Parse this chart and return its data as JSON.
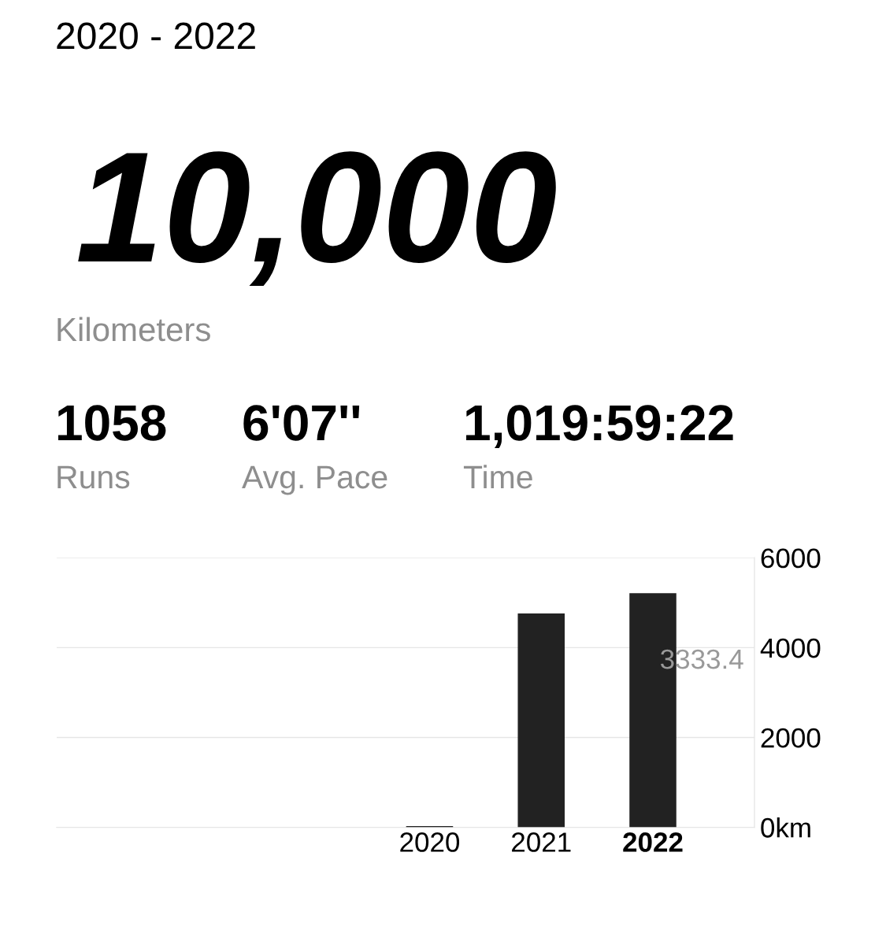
{
  "chart_data": [
    {
      "type": "other",
      "title": "2020 - 2022",
      "annotations": [
        "10,000",
        "Kilometers",
        "1058",
        "Runs",
        "6'07''",
        "Avg. Pace",
        "1,019:59:22",
        "Time"
      ]
    },
    {
      "type": "bar",
      "categories": [
        "2020",
        "2021",
        "2022"
      ],
      "values": [
        30,
        4760,
        5210
      ],
      "color": "#222222",
      "ylim": [
        0,
        6000
      ],
      "yticks": [
        {
          "value": 0,
          "label": "0km"
        },
        2000,
        4000,
        6000
      ],
      "grid": "y",
      "annotations": [
        "3333.4"
      ]
    }
  ]
}
